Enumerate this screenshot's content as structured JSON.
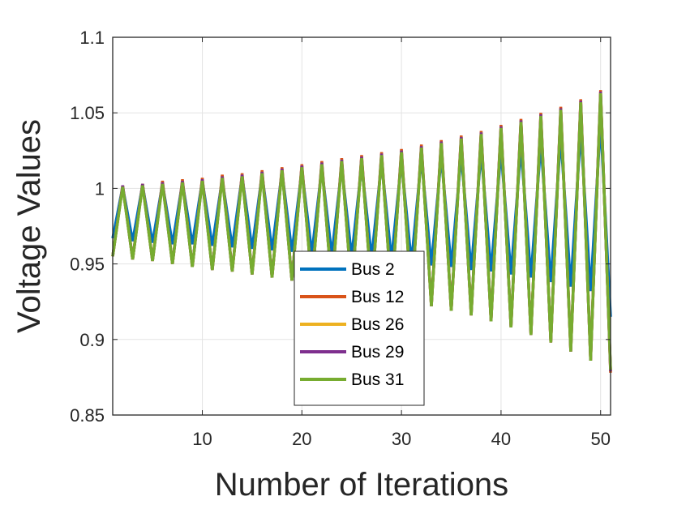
{
  "chart_data": {
    "type": "line",
    "title": "",
    "xlabel": "Number of Iterations",
    "ylabel": "Voltage Values",
    "xlim": [
      1,
      51
    ],
    "ylim": [
      0.85,
      1.1
    ],
    "xticks": [
      10,
      20,
      30,
      40,
      50
    ],
    "yticks": [
      0.85,
      0.9,
      0.95,
      1,
      1.05,
      1.1
    ],
    "ytick_labels": [
      "0.85",
      "0.9",
      "0.95",
      "1",
      "1.05",
      "1.1"
    ],
    "grid": true,
    "legend_position": "lower-center",
    "x": [
      1,
      2,
      3,
      4,
      5,
      6,
      7,
      8,
      9,
      10,
      11,
      12,
      13,
      14,
      15,
      16,
      17,
      18,
      19,
      20,
      21,
      22,
      23,
      24,
      25,
      26,
      27,
      28,
      29,
      30,
      31,
      32,
      33,
      34,
      35,
      36,
      37,
      38,
      39,
      40,
      41,
      42,
      43,
      44,
      45,
      46,
      47,
      48,
      49,
      50,
      51
    ],
    "series": [
      {
        "name": "Bus 2",
        "color": "#0072BD",
        "values": [
          0.967,
          1.001,
          0.965,
          1.002,
          0.964,
          1.003,
          0.963,
          1.004,
          0.963,
          1.005,
          0.962,
          1.006,
          0.961,
          1.008,
          0.96,
          1.009,
          0.959,
          1.011,
          0.958,
          1.012,
          0.957,
          1.013,
          0.956,
          1.014,
          0.955,
          1.015,
          0.954,
          1.017,
          0.953,
          1.018,
          0.951,
          1.02,
          0.949,
          1.021,
          0.948,
          1.022,
          0.946,
          1.024,
          0.945,
          1.025,
          0.943,
          1.027,
          0.941,
          1.03,
          0.938,
          1.034,
          0.935,
          1.038,
          0.932,
          1.044,
          0.915
        ]
      },
      {
        "name": "Bus 12",
        "color": "#D95319",
        "values": [
          0.955,
          1.002,
          0.953,
          1.003,
          0.952,
          1.005,
          0.95,
          1.006,
          0.948,
          1.007,
          0.946,
          1.009,
          0.945,
          1.01,
          0.943,
          1.012,
          0.941,
          1.014,
          0.939,
          1.016,
          0.937,
          1.018,
          0.934,
          1.02,
          0.932,
          1.022,
          0.93,
          1.024,
          0.928,
          1.026,
          0.925,
          1.029,
          0.922,
          1.032,
          0.919,
          1.035,
          0.916,
          1.038,
          0.912,
          1.042,
          0.908,
          1.046,
          0.903,
          1.05,
          0.898,
          1.054,
          0.892,
          1.059,
          0.886,
          1.065,
          0.878
        ]
      },
      {
        "name": "Bus 26",
        "color": "#EDB120",
        "values": [
          0.955,
          1.002,
          0.953,
          1.003,
          0.952,
          1.004,
          0.95,
          1.005,
          0.948,
          1.006,
          0.946,
          1.008,
          0.945,
          1.009,
          0.943,
          1.011,
          0.941,
          1.013,
          0.939,
          1.015,
          0.937,
          1.017,
          0.934,
          1.019,
          0.932,
          1.021,
          0.93,
          1.023,
          0.928,
          1.025,
          0.925,
          1.028,
          0.922,
          1.031,
          0.919,
          1.034,
          0.916,
          1.037,
          0.912,
          1.041,
          0.908,
          1.045,
          0.903,
          1.049,
          0.898,
          1.053,
          0.892,
          1.058,
          0.886,
          1.064,
          0.879
        ]
      },
      {
        "name": "Bus 29",
        "color": "#7E2F8E",
        "values": [
          0.955,
          1.002,
          0.953,
          1.003,
          0.952,
          1.004,
          0.95,
          1.005,
          0.948,
          1.006,
          0.946,
          1.008,
          0.945,
          1.009,
          0.943,
          1.011,
          0.941,
          1.013,
          0.939,
          1.015,
          0.937,
          1.017,
          0.934,
          1.019,
          0.932,
          1.021,
          0.93,
          1.023,
          0.928,
          1.025,
          0.925,
          1.028,
          0.922,
          1.031,
          0.919,
          1.034,
          0.916,
          1.037,
          0.912,
          1.041,
          0.908,
          1.045,
          0.903,
          1.049,
          0.898,
          1.053,
          0.892,
          1.058,
          0.886,
          1.064,
          0.879
        ]
      },
      {
        "name": "Bus 31",
        "color": "#77AC30",
        "values": [
          0.955,
          1.001,
          0.953,
          1.002,
          0.952,
          1.003,
          0.95,
          1.004,
          0.948,
          1.005,
          0.946,
          1.007,
          0.945,
          1.008,
          0.943,
          1.01,
          0.941,
          1.012,
          0.939,
          1.014,
          0.937,
          1.016,
          0.934,
          1.018,
          0.932,
          1.02,
          0.93,
          1.022,
          0.928,
          1.024,
          0.925,
          1.027,
          0.922,
          1.03,
          0.919,
          1.033,
          0.916,
          1.036,
          0.912,
          1.04,
          0.908,
          1.044,
          0.903,
          1.048,
          0.898,
          1.052,
          0.892,
          1.057,
          0.886,
          1.063,
          0.88
        ]
      }
    ]
  }
}
